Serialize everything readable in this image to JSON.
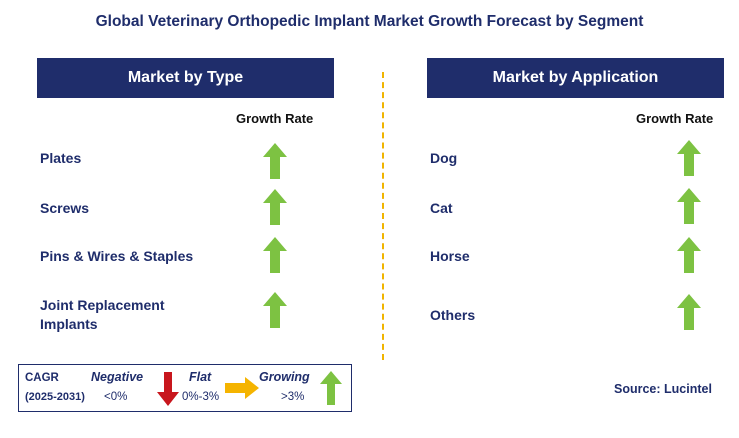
{
  "title": "Global Veterinary Orthopedic Implant Market Growth Forecast by Segment",
  "left_panel": {
    "header": "Market by Type",
    "column_header": "Growth Rate",
    "rows": [
      {
        "label": "Plates",
        "trend": "growing"
      },
      {
        "label": "Screws",
        "trend": "growing"
      },
      {
        "label": "Pins & Wires & Staples",
        "trend": "growing"
      },
      {
        "label_line1": "Joint Replacement",
        "label_line2": "Implants",
        "trend": "growing"
      }
    ]
  },
  "right_panel": {
    "header": "Market by Application",
    "column_header": "Growth Rate",
    "rows": [
      {
        "label": "Dog",
        "trend": "growing"
      },
      {
        "label": "Cat",
        "trend": "growing"
      },
      {
        "label": "Horse",
        "trend": "growing"
      },
      {
        "label": "Others",
        "trend": "growing"
      }
    ]
  },
  "legend": {
    "cagr_label": "CAGR",
    "period": "(2025-2031)",
    "negative_label": "Negative",
    "negative_range": "<0%",
    "flat_label": "Flat",
    "flat_range": "0%-3%",
    "growing_label": "Growing",
    "growing_range": ">3%"
  },
  "source": "Source: Lucintel",
  "colors": {
    "header_bg": "#1f2d6b",
    "arrow_green": "#7dc242",
    "arrow_red": "#c8161d",
    "arrow_yellow": "#f5b400",
    "divider": "#f0b400"
  },
  "icons": {
    "growing": "arrow-up-green-icon",
    "negative": "arrow-down-red-icon",
    "flat": "arrow-right-yellow-icon"
  }
}
